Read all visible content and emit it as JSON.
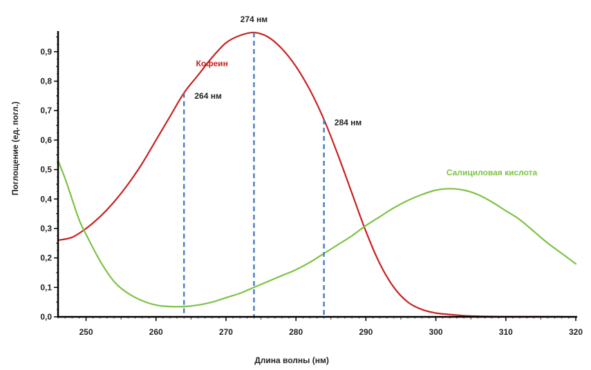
{
  "chart_data": {
    "type": "line",
    "title": "",
    "xlabel": "Длина волны (нм)",
    "ylabel": "Поглощение (ед. погл.)",
    "xlim": [
      246,
      320
    ],
    "ylim": [
      0,
      0.97
    ],
    "x_ticks": [
      250,
      260,
      270,
      280,
      290,
      300,
      310,
      320
    ],
    "x_tick_labels": [
      "250",
      "260",
      "270",
      "280",
      "290",
      "300",
      "310",
      "320"
    ],
    "y_ticks": [
      0,
      0.1,
      0.2,
      0.3,
      0.4,
      0.5,
      0.6,
      0.7,
      0.8,
      0.9
    ],
    "y_tick_labels": [
      "0,0",
      "0,1",
      "0,2",
      "0,3",
      "0,4",
      "0,5",
      "0,6",
      "0,7",
      "0,8",
      "0,9"
    ],
    "grid": false,
    "series": [
      {
        "name": "Кофеин",
        "color": "#c8201e",
        "x": [
          246,
          248,
          250,
          252,
          254,
          256,
          258,
          260,
          262,
          264,
          266,
          268,
          270,
          272,
          274,
          276,
          278,
          280,
          282,
          284,
          286,
          288,
          290,
          292,
          294,
          296,
          298,
          300,
          302,
          304,
          306,
          310,
          315,
          320
        ],
        "values": [
          0.26,
          0.27,
          0.3,
          0.34,
          0.39,
          0.45,
          0.52,
          0.6,
          0.68,
          0.76,
          0.82,
          0.88,
          0.93,
          0.955,
          0.965,
          0.95,
          0.91,
          0.85,
          0.77,
          0.67,
          0.55,
          0.42,
          0.29,
          0.18,
          0.1,
          0.05,
          0.025,
          0.013,
          0.008,
          0.004,
          0.002,
          0.001,
          0.001,
          0.0
        ]
      },
      {
        "name": "Салициловая кислота",
        "color": "#7cc242",
        "x": [
          246,
          247,
          248,
          249,
          250,
          252,
          254,
          256,
          258,
          260,
          262,
          264,
          266,
          268,
          270,
          272,
          274,
          276,
          278,
          280,
          282,
          284,
          286,
          288,
          290,
          292,
          294,
          296,
          298,
          300,
          302,
          304,
          306,
          308,
          310,
          312,
          314,
          316,
          318,
          320
        ],
        "values": [
          0.53,
          0.47,
          0.4,
          0.33,
          0.28,
          0.19,
          0.12,
          0.08,
          0.055,
          0.04,
          0.035,
          0.035,
          0.04,
          0.05,
          0.065,
          0.08,
          0.1,
          0.12,
          0.14,
          0.16,
          0.185,
          0.215,
          0.245,
          0.275,
          0.31,
          0.34,
          0.37,
          0.395,
          0.415,
          0.43,
          0.435,
          0.43,
          0.415,
          0.39,
          0.36,
          0.33,
          0.29,
          0.25,
          0.215,
          0.18
        ]
      }
    ],
    "series_labels": [
      {
        "text": "Кофеин",
        "x": 268,
        "y": 0.85
      },
      {
        "text": "Салициловая кислота",
        "x": 308,
        "y": 0.48
      }
    ],
    "markers": [
      {
        "x": 264,
        "y": 0.76,
        "label": "264 нм",
        "label_x": 265.5,
        "label_y": 0.74
      },
      {
        "x": 274,
        "y": 0.965,
        "label": "274 нм",
        "label_x": 274,
        "label_y": 1.0
      },
      {
        "x": 284,
        "y": 0.67,
        "label": "284 нм",
        "label_x": 285.5,
        "label_y": 0.65
      }
    ],
    "marker_color": "#4a7fc6",
    "legend": "none"
  }
}
